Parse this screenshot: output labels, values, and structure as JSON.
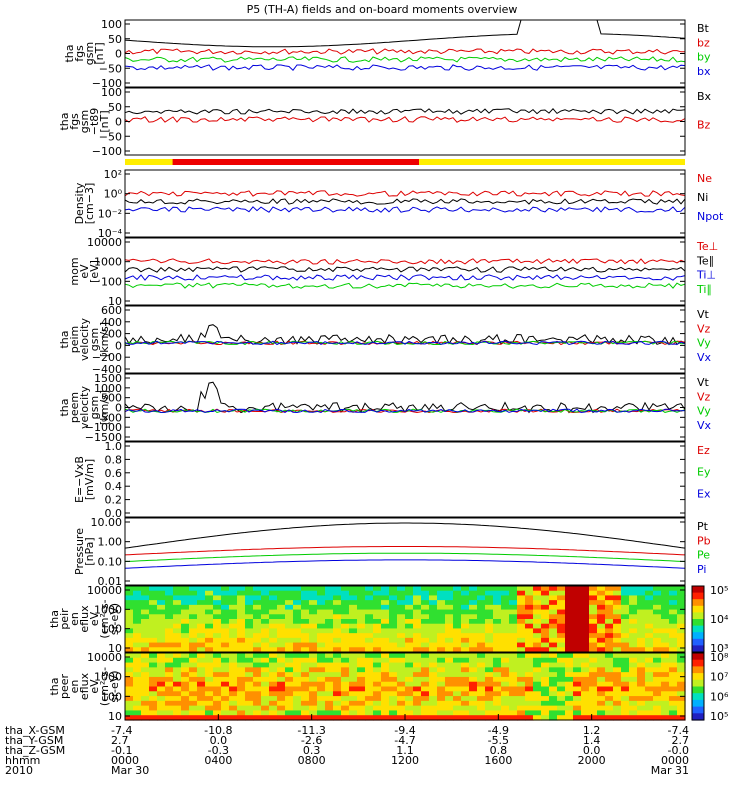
{
  "chart_data": {
    "type": "line",
    "title": "P5 (TH-A) fields and on-board moments overview",
    "panels": [
      {
        "id": "fgs",
        "ylabel": [
          "tha",
          "fgs",
          "gsm",
          "[nT]"
        ],
        "yticks": [
          "100",
          "50",
          "0",
          "−50",
          "−100"
        ],
        "legend": [
          {
            "name": "Bt",
            "color": "#000000"
          },
          {
            "name": "bz",
            "color": "#dd0000"
          },
          {
            "name": "by",
            "color": "#00cc00"
          },
          {
            "name": "bx",
            "color": "#0000dd"
          }
        ]
      },
      {
        "id": "fgs_t89",
        "ylabel": [
          "tha",
          "fgs",
          "gsm",
          "−t89",
          "[nT]"
        ],
        "yticks": [
          "100",
          "50",
          "0",
          "−50",
          "−100"
        ],
        "legend": [
          {
            "name": "Bx",
            "color": "#000000"
          },
          {
            "name": "Bz",
            "color": "#dd0000"
          }
        ]
      },
      {
        "id": "density",
        "ylabel": [
          "Density",
          "[cm−3]"
        ],
        "yticks": [
          "10²",
          "10⁰",
          "10⁻²",
          "10⁻⁴"
        ],
        "legend": [
          {
            "name": "Ne",
            "color": "#dd0000"
          },
          {
            "name": "Ni",
            "color": "#000000"
          },
          {
            "name": "Npot",
            "color": "#0000dd"
          }
        ]
      },
      {
        "id": "temp",
        "ylabel": [
          "mom",
          "eV",
          "[eV]"
        ],
        "yticks": [
          "10000",
          "1000",
          "100",
          "10"
        ],
        "legend": [
          {
            "name": "Te⊥",
            "color": "#dd0000"
          },
          {
            "name": "Te∥",
            "color": "#000000"
          },
          {
            "name": "Ti⊥",
            "color": "#0000dd"
          },
          {
            "name": "Ti∥",
            "color": "#00cc00"
          }
        ]
      },
      {
        "id": "peim",
        "ylabel": [
          "tha",
          "peim",
          "velocity",
          "gsm",
          "[km/s]"
        ],
        "yticks": [
          "600",
          "400",
          "200",
          "0",
          "−200",
          "−400"
        ],
        "legend": [
          {
            "name": "Vt",
            "color": "#000000"
          },
          {
            "name": "Vz",
            "color": "#dd0000"
          },
          {
            "name": "Vy",
            "color": "#00cc00"
          },
          {
            "name": "Vx",
            "color": "#0000dd"
          }
        ]
      },
      {
        "id": "peem",
        "ylabel": [
          "tha",
          "peem",
          "velocity",
          "gsm",
          "[km/s]"
        ],
        "yticks": [
          "1500",
          "1000",
          "500",
          "0",
          "−500",
          "−1000",
          "−1500"
        ],
        "legend": [
          {
            "name": "Vt",
            "color": "#000000"
          },
          {
            "name": "Vz",
            "color": "#dd0000"
          },
          {
            "name": "Vy",
            "color": "#00cc00"
          },
          {
            "name": "Vx",
            "color": "#0000dd"
          }
        ]
      },
      {
        "id": "efield",
        "ylabel": [
          "E=−VxB",
          "[mV/m]"
        ],
        "yticks": [
          "1.0",
          "0.8",
          "0.6",
          "0.4",
          "0.2",
          "0.0"
        ],
        "legend": [
          {
            "name": "Ez",
            "color": "#dd0000"
          },
          {
            "name": "Ey",
            "color": "#00cc00"
          },
          {
            "name": "Ex",
            "color": "#0000dd"
          }
        ]
      },
      {
        "id": "pressure",
        "ylabel": [
          "Pressure",
          "[nPa]"
        ],
        "yticks": [
          "10.00",
          "1.00",
          "0.10",
          "0.01"
        ],
        "legend": [
          {
            "name": "Pt",
            "color": "#000000"
          },
          {
            "name": "Pb",
            "color": "#dd0000"
          },
          {
            "name": "Pe",
            "color": "#00cc00"
          },
          {
            "name": "Pi",
            "color": "#0000dd"
          }
        ]
      },
      {
        "id": "peir",
        "ylabel": [
          "tha",
          "peir",
          "en",
          "eflux",
          "eV",
          "(cm²-s-",
          "sr-eV)"
        ],
        "yticks": [
          "10000",
          "1000",
          "100",
          "10"
        ],
        "colorbar": [
          "10⁵",
          "10⁴",
          "10³"
        ]
      },
      {
        "id": "peer",
        "ylabel": [
          "tha",
          "peer",
          "en",
          "eflux",
          "eV",
          "(cm²-s-",
          "sr-eV)"
        ],
        "yticks": [
          "10000",
          "1000",
          "100",
          "10"
        ],
        "colorbar": [
          "10⁸",
          "10⁷",
          "10⁶",
          "10⁵"
        ]
      }
    ],
    "x_ticks": [
      {
        "x": "-7.4",
        "y": "2.7",
        "z": "-0.1",
        "hhmm": "0000",
        "date": "Mar 30"
      },
      {
        "x": "-10.8",
        "y": "0.0",
        "z": "-0.3",
        "hhmm": "0400",
        "date": ""
      },
      {
        "x": "-11.3",
        "y": "-2.6",
        "z": "0.3",
        "hhmm": "0800",
        "date": ""
      },
      {
        "x": "-9.4",
        "y": "-4.7",
        "z": "1.1",
        "hhmm": "1200",
        "date": ""
      },
      {
        "x": "-4.9",
        "y": "-5.5",
        "z": "0.8",
        "hhmm": "1600",
        "date": ""
      },
      {
        "x": "1.2",
        "y": "1.4",
        "z": "0.0",
        "hhmm": "2000",
        "date": ""
      },
      {
        "x": "-7.4",
        "y": "2.7",
        "z": "-0.0",
        "hhmm": "0000",
        "date": "Mar 31"
      }
    ],
    "x_row_labels": [
      "tha_X-GSM",
      "tha_Y-GSM",
      "tha_Z-GSM",
      "hhmm",
      "2010"
    ],
    "x_hours": [
      0,
      4,
      8,
      12,
      16,
      20,
      24
    ]
  }
}
